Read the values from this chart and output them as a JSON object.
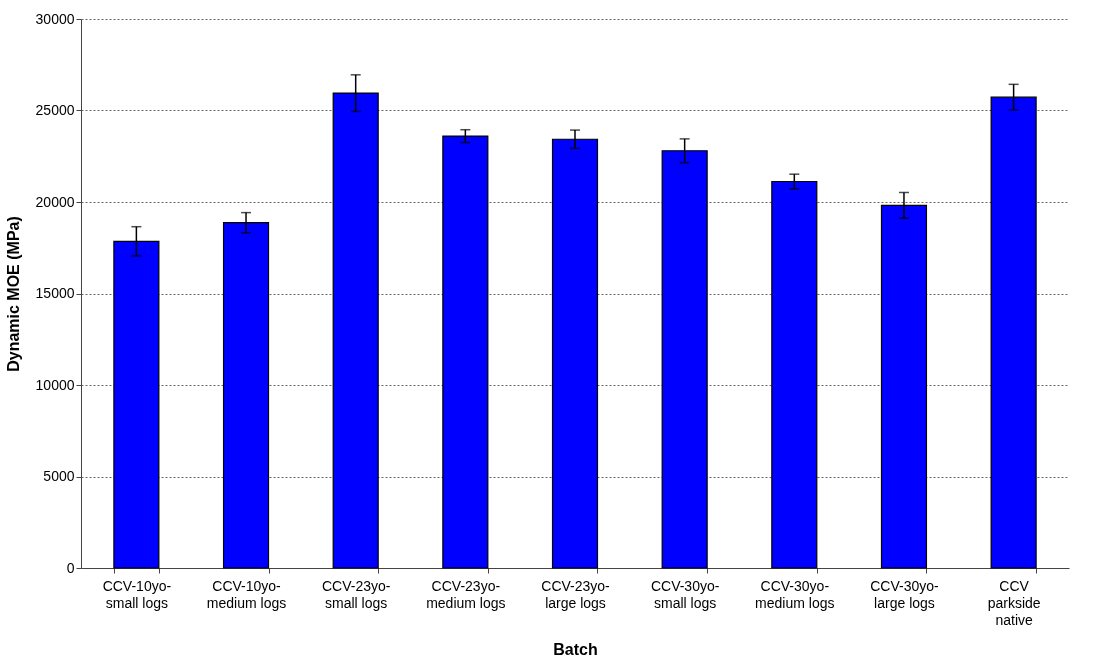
{
  "chart_data": {
    "type": "bar",
    "xlabel": "Batch",
    "ylabel": "Dynamic MOE (MPa)",
    "categories": [
      "CCV-10yo-\nsmall logs",
      "CCV-10yo-\nmedium logs",
      "CCV-23yo-\nsmall logs",
      "CCV-23yo-\nmedium logs",
      "CCV-23yo-\nlarge logs",
      "CCV-30yo-\nsmall logs",
      "CCV-30yo-\nmedium logs",
      "CCV-30yo-\nlarge logs",
      "CCV\nparkside\nnative"
    ],
    "values": [
      17850,
      18870,
      25950,
      23600,
      23430,
      22800,
      21120,
      19820,
      25730
    ],
    "errors": [
      800,
      550,
      1000,
      350,
      500,
      650,
      400,
      700,
      700
    ],
    "color": "#0000ff",
    "ylim": [
      0,
      30000
    ],
    "yticks": [
      0,
      5000,
      10000,
      15000,
      20000,
      25000,
      30000
    ],
    "grid": "y"
  }
}
